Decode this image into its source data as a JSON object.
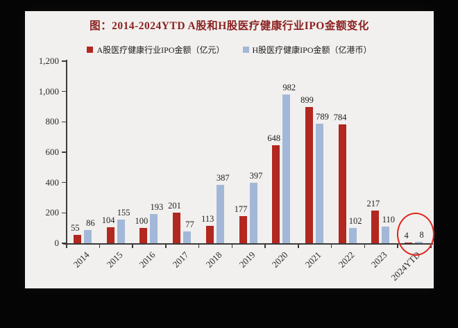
{
  "title": "图：2014-2024YTD A股和H股医疗健康行业IPO金额变化",
  "colors": {
    "background": "#050505",
    "panel": "#f1f0ee",
    "title_text": "#8b2121",
    "axis": "#3a3a3a",
    "label_text": "#1f1f1f",
    "series_a": "#b2271f",
    "series_h": "#a3b8d8",
    "annotation": "#e0251b"
  },
  "chart_data": {
    "type": "bar",
    "title": "图：2014-2024YTD A股和H股医疗健康行业IPO金额变化",
    "categories": [
      "2014",
      "2015",
      "2016",
      "2017",
      "2018",
      "2019",
      "2020",
      "2021",
      "2022",
      "2023",
      "2024YTD"
    ],
    "series": [
      {
        "name": "A股医疗健康行业IPO金额（亿元）",
        "color": "#b2271f",
        "values": [
          55,
          104,
          100,
          201,
          113,
          177,
          648,
          899,
          784,
          217,
          4
        ]
      },
      {
        "name": "H股医疗健康IPO金额（亿港币）",
        "color": "#a3b8d8",
        "values": [
          86,
          155,
          193,
          77,
          387,
          397,
          982,
          789,
          102,
          110,
          8
        ]
      }
    ],
    "xlabel": "",
    "ylabel": "",
    "ylim": [
      0,
      1200
    ],
    "y_tick_values": [
      0,
      200,
      400,
      600,
      800,
      1000,
      1200
    ],
    "y_tick_labels": [
      "0",
      "200",
      "400",
      "600",
      "800",
      "1,000",
      "1,200"
    ],
    "grid": false,
    "legend_position": "top",
    "value_labels": true,
    "x_label_rotation_deg": 45,
    "annotation": {
      "shape": "ellipse",
      "color": "#e0251b",
      "target_category": "2024YTD",
      "circled_values": [
        4,
        8
      ]
    }
  }
}
